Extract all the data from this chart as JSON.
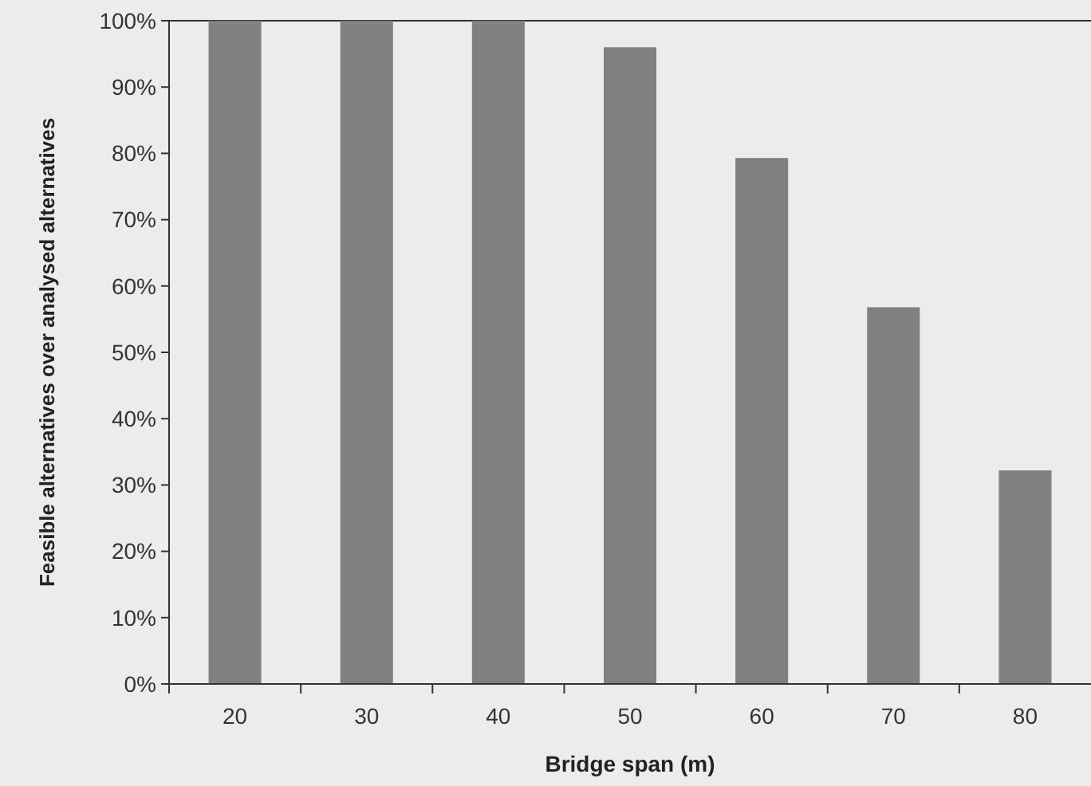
{
  "chart_data": {
    "type": "bar",
    "xlabel": "Bridge span (m)",
    "ylabel": "Feasible alternatives over analysed alternatives",
    "categories": [
      "20",
      "30",
      "40",
      "50",
      "60",
      "70",
      "80"
    ],
    "values": [
      100,
      100,
      100,
      96,
      79.3,
      56.8,
      32.2
    ],
    "color": "#808080",
    "ylim": [
      0,
      100
    ],
    "yticks": [
      {
        "value": 0,
        "label": "0%"
      },
      {
        "value": 10,
        "label": "10%"
      },
      {
        "value": 20,
        "label": "20%"
      },
      {
        "value": 30,
        "label": "30%"
      },
      {
        "value": 40,
        "label": "40%"
      },
      {
        "value": 50,
        "label": "50%"
      },
      {
        "value": 60,
        "label": "60%"
      },
      {
        "value": 70,
        "label": "70%"
      },
      {
        "value": 80,
        "label": "80%"
      },
      {
        "value": 90,
        "label": "90%"
      },
      {
        "value": 100,
        "label": "100%"
      }
    ],
    "grid": false
  }
}
